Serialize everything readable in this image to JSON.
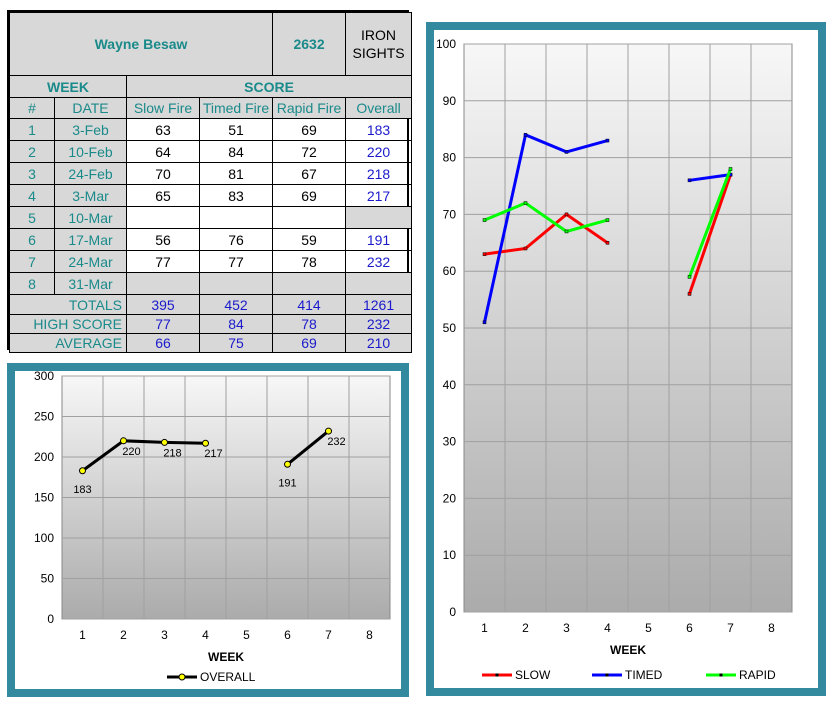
{
  "header": {
    "name": "Wayne Besaw",
    "id": "2632",
    "sights_line1": "IRON",
    "sights_line2": "SIGHTS"
  },
  "table": {
    "week_label": "WEEK",
    "score_label": "SCORE",
    "columns": [
      "#",
      "DATE",
      "Slow Fire",
      "Timed Fire",
      "Rapid Fire",
      "Overall"
    ],
    "rows": [
      {
        "num": "1",
        "date": "3-Feb",
        "slow": "63",
        "timed": "51",
        "rapid": "69",
        "overall": "183"
      },
      {
        "num": "2",
        "date": "10-Feb",
        "slow": "64",
        "timed": "84",
        "rapid": "72",
        "overall": "220"
      },
      {
        "num": "3",
        "date": "24-Feb",
        "slow": "70",
        "timed": "81",
        "rapid": "67",
        "overall": "218"
      },
      {
        "num": "4",
        "date": "3-Mar",
        "slow": "65",
        "timed": "83",
        "rapid": "69",
        "overall": "217"
      },
      {
        "num": "5",
        "date": "10-Mar",
        "slow": "",
        "timed": "",
        "rapid": "",
        "overall": ""
      },
      {
        "num": "6",
        "date": "17-Mar",
        "slow": "56",
        "timed": "76",
        "rapid": "59",
        "overall": "191"
      },
      {
        "num": "7",
        "date": "24-Mar",
        "slow": "77",
        "timed": "77",
        "rapid": "78",
        "overall": "232"
      },
      {
        "num": "8",
        "date": "31-Mar",
        "slow": "",
        "timed": "",
        "rapid": "",
        "overall": ""
      }
    ],
    "summary": [
      {
        "label": "TOTALS",
        "slow": "395",
        "timed": "452",
        "rapid": "414",
        "overall": "1261"
      },
      {
        "label": "HIGH SCORE",
        "slow": "77",
        "timed": "84",
        "rapid": "78",
        "overall": "232"
      },
      {
        "label": "AVERAGE",
        "slow": "66",
        "timed": "75",
        "rapid": "69",
        "overall": "210"
      }
    ]
  },
  "chart_data": [
    {
      "type": "line",
      "xlabel": "WEEK",
      "ylabel": "",
      "x": [
        1,
        2,
        3,
        4,
        5,
        6,
        7,
        8
      ],
      "xlim": [
        1,
        8
      ],
      "ylim": [
        0,
        300
      ],
      "yticks": [
        0,
        50,
        100,
        150,
        200,
        250,
        300
      ],
      "grid": true,
      "legend": "bottom",
      "series": [
        {
          "name": "OVERALL",
          "color": "#000000",
          "marker_color": "#ffff00",
          "values": [
            183,
            220,
            218,
            217,
            null,
            191,
            232,
            null
          ],
          "labels": [
            "183",
            "220",
            "218",
            "217",
            "",
            "191",
            "232",
            ""
          ]
        }
      ]
    },
    {
      "type": "line",
      "xlabel": "WEEK",
      "ylabel": "",
      "x": [
        1,
        2,
        3,
        4,
        5,
        6,
        7,
        8
      ],
      "xlim": [
        1,
        8
      ],
      "ylim": [
        0,
        100
      ],
      "yticks": [
        0,
        10,
        20,
        30,
        40,
        50,
        60,
        70,
        80,
        90,
        100
      ],
      "grid": true,
      "legend": "bottom",
      "series": [
        {
          "name": "SLOW",
          "color": "#ff0000",
          "values": [
            63,
            64,
            70,
            65,
            null,
            56,
            77,
            null
          ]
        },
        {
          "name": "TIMED",
          "color": "#0000ff",
          "values": [
            51,
            84,
            81,
            83,
            null,
            76,
            77,
            null
          ]
        },
        {
          "name": "RAPID",
          "color": "#00ff00",
          "values": [
            69,
            72,
            67,
            69,
            null,
            59,
            78,
            null
          ]
        }
      ]
    }
  ]
}
